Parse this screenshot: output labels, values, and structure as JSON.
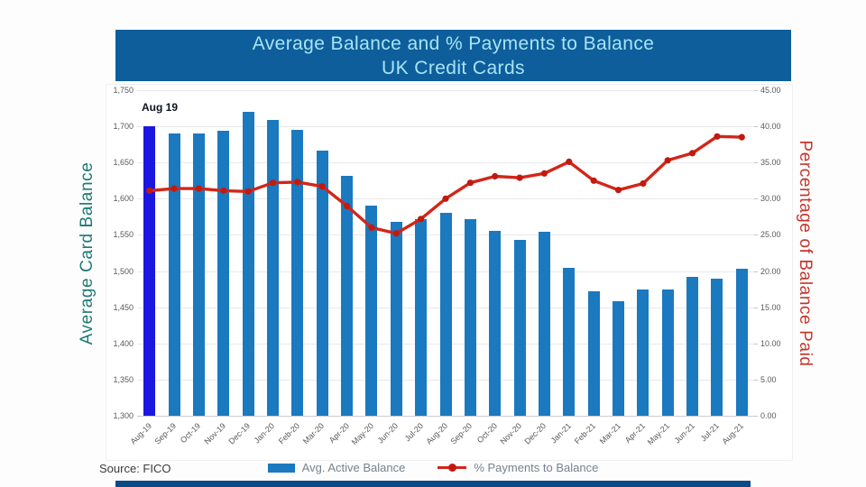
{
  "header": {
    "line1": "Average Balance and % Payments to Balance",
    "line2": "UK Credit Cards"
  },
  "source_label": "Source: FICO",
  "colors": {
    "banner_bg": "#0E5E9C",
    "banner_text": "#A7E4F4",
    "bar": "#1B79BF",
    "bar_highlight": "#1B17E0",
    "line": "#D22619",
    "marker": "#C11A0E",
    "left_axis_title": "#1C7A73",
    "right_axis_title": "#C5362B",
    "tick_text": "#595959"
  },
  "chart_data": {
    "type": "combo",
    "title": "Average Balance and % Payments to Balance UK Credit Cards",
    "ylabel": "Average Card Balance",
    "y2label": "Percentage of Balance Paid",
    "annotation": "Aug 19",
    "grid": true,
    "legend_position": "bottom",
    "categories": [
      "Aug-19",
      "Sep-19",
      "Oct-19",
      "Nov-19",
      "Dec-19",
      "Jan-20",
      "Feb-20",
      "Mar-20",
      "Apr-20",
      "May-20",
      "Jun-20",
      "Jul-20",
      "Aug-20",
      "Sep-20",
      "Oct-20",
      "Nov-20",
      "Dec-20",
      "Jan-21",
      "Feb-21",
      "Mar-21",
      "Apr-21",
      "May-21",
      "Jun-21",
      "Jul-21",
      "Aug-21"
    ],
    "series": [
      {
        "name": "Avg. Active Balance",
        "type": "bar",
        "axis": "left",
        "highlight_index": 0,
        "values": [
          1700,
          1690,
          1690,
          1694,
          1720,
          1709,
          1695,
          1667,
          1632,
          1590,
          1568,
          1572,
          1580,
          1572,
          1555,
          1543,
          1554,
          1505,
          1472,
          1458,
          1474,
          1475,
          1492,
          1489,
          1503
        ]
      },
      {
        "name": "% Payments to Balance",
        "type": "line",
        "axis": "right",
        "values": [
          31.1,
          31.4,
          31.4,
          31.1,
          31.0,
          32.2,
          32.3,
          31.7,
          29.0,
          26.0,
          25.2,
          27.2,
          30.0,
          32.2,
          33.1,
          32.9,
          33.5,
          35.1,
          32.5,
          31.2,
          32.1,
          35.3,
          36.3,
          38.6,
          38.5
        ]
      }
    ],
    "left_axis": {
      "min": 1300,
      "max": 1750,
      "step": 50,
      "ticks": [
        "1,750",
        "1,700",
        "1,650",
        "1,600",
        "1,550",
        "1,500",
        "1,450",
        "1,400",
        "1,350",
        "1,300"
      ]
    },
    "right_axis": {
      "min": 0,
      "max": 45,
      "step": 5,
      "ticks": [
        "45.00",
        "40.00",
        "35.00",
        "30.00",
        "25.00",
        "20.00",
        "15.00",
        "10.00",
        "5.00",
        "0.00"
      ]
    }
  }
}
